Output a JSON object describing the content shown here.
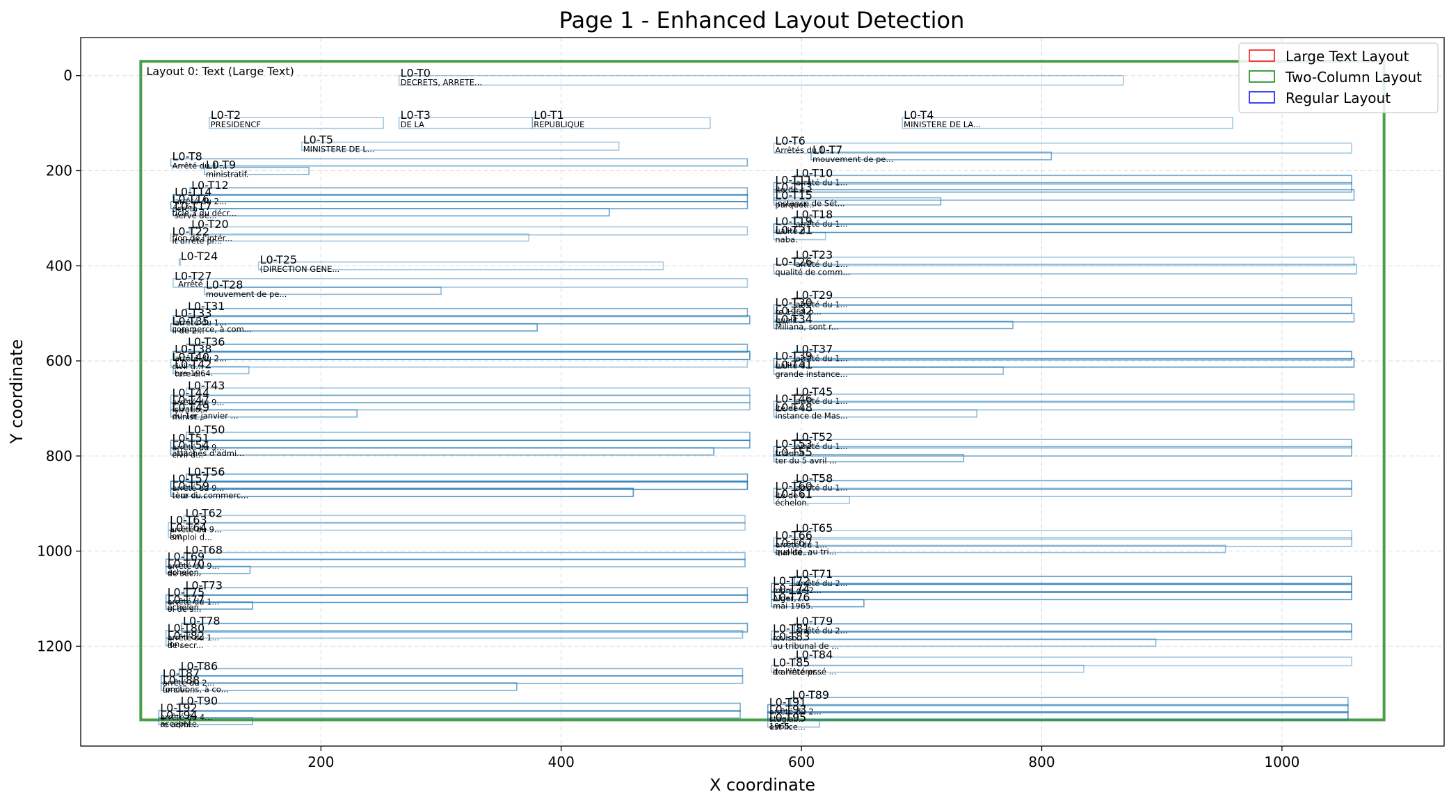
{
  "chart_data": {
    "type": "scatter",
    "title": "Page 1 - Enhanced Layout Detection",
    "xlabel": "X coordinate",
    "ylabel": "Y coordinate",
    "xlim": [
      0,
      1135
    ],
    "ylim": [
      1410,
      -80
    ],
    "y_inverted": true,
    "grid": true,
    "legend_position": "top-right",
    "xticks": [
      200,
      400,
      600,
      800,
      1000
    ],
    "yticks": [
      0,
      200,
      400,
      600,
      800,
      1000,
      1200
    ],
    "legend": [
      {
        "label": "Large Text Layout",
        "color": "#ff0000"
      },
      {
        "label": "Two-Column Layout",
        "color": "#008000"
      },
      {
        "label": "Regular Layout",
        "color": "#0000ff"
      }
    ],
    "layouts": [
      {
        "label": "Layout 0: Text (Large Text)",
        "x0": 50,
        "y0": -30,
        "x1": 1085,
        "y1": 1355,
        "color": "#4a9e4a"
      }
    ],
    "boxes": [
      {
        "label": "L0-T0",
        "text": "DECRETS, ARRETE...",
        "x0": 265,
        "y0": 0,
        "x1": 868,
        "y1": 20,
        "a": 0.4
      },
      {
        "label": "L0-T1",
        "text": "REPUBLIQUE",
        "x0": 376,
        "y0": 88,
        "x1": 524,
        "y1": 111,
        "a": 0.4
      },
      {
        "label": "L0-T2",
        "text": "PRESIDENCF",
        "x0": 107,
        "y0": 88,
        "x1": 252,
        "y1": 111,
        "a": 0.4
      },
      {
        "label": "L0-T3",
        "text": "DE LA",
        "x0": 265,
        "y0": 88,
        "x1": 376,
        "y1": 111,
        "a": 0.4
      },
      {
        "label": "L0-T4",
        "text": "MINISTERE DE LA...",
        "x0": 684,
        "y0": 88,
        "x1": 959,
        "y1": 111,
        "a": 0.4
      },
      {
        "label": "L0-T5",
        "text": "MINISTERE DE L...",
        "x0": 184,
        "y0": 140,
        "x1": 448,
        "y1": 157,
        "a": 0.4
      },
      {
        "label": "L0-T6",
        "text": "Arrêtés du 1 ...",
        "x0": 577,
        "y0": 142,
        "x1": 1058,
        "y1": 163,
        "a": 0.4
      },
      {
        "label": "L0-T7",
        "text": "mouvement de pe...",
        "x0": 608,
        "y0": 161,
        "x1": 808,
        "y1": 177,
        "a": 0.6
      },
      {
        "label": "L0-T8",
        "text": "Arrêté du 1 ...",
        "x0": 75,
        "y0": 175,
        "x1": 555,
        "y1": 190,
        "a": 0.6
      },
      {
        "label": "L0-T9",
        "text": "ministratif.",
        "x0": 103,
        "y0": 193,
        "x1": 190,
        "y1": 208,
        "a": 0.6
      },
      {
        "label": "L0-T10",
        "text": "arrêté du 1...",
        "x0": 594,
        "y0": 210,
        "x1": 1058,
        "y1": 228,
        "a": 0.6
      },
      {
        "label": "L0-T11",
        "text": "ite de c...",
        "x0": 577,
        "y0": 225,
        "x1": 1058,
        "y1": 245,
        "a": 0.6
      },
      {
        "label": "L0-T12",
        "text": "",
        "x0": 91,
        "y0": 236,
        "x1": 555,
        "y1": 252,
        "a": 0.6
      },
      {
        "label": "L0-T13",
        "text": "",
        "x0": 577,
        "y0": 240,
        "x1": 1060,
        "y1": 262,
        "a": 0.6
      },
      {
        "label": "L0-T14",
        "text": "arrêté du 2...",
        "x0": 77,
        "y0": 250,
        "x1": 555,
        "y1": 265,
        "a": 0.7
      },
      {
        "label": "L0-T15",
        "text": "parquet...",
        "x0": 577,
        "y0": 257,
        "x1": 716,
        "y1": 272,
        "a": 0.6
      },
      {
        "label": "L0-T16",
        "text": "écréta",
        "x0": 75,
        "y0": 265,
        "x1": 555,
        "y1": 280,
        "a": 0.7
      },
      {
        "label": "L0-T17",
        "text": "serve de...",
        "x0": 77,
        "y0": 280,
        "x1": 440,
        "y1": 295,
        "a": 0.7
      },
      {
        "label": "L0-T18",
        "text": "arrêté du 1...",
        "x0": 594,
        "y0": 297,
        "x1": 1058,
        "y1": 313,
        "a": 0.7
      },
      {
        "label": "L0-T19",
        "text": "ualité d...",
        "x0": 577,
        "y0": 312,
        "x1": 1058,
        "y1": 330,
        "a": 0.8
      },
      {
        "label": "L0-T20",
        "text": "",
        "x0": 91,
        "y0": 318,
        "x1": 555,
        "y1": 335,
        "a": 0.4
      },
      {
        "label": "L0-T21",
        "text": "naba.",
        "x0": 577,
        "y0": 330,
        "x1": 620,
        "y1": 345,
        "a": 0.4
      },
      {
        "label": "L0-T22",
        "text": "it arrêté pr...",
        "x0": 75,
        "y0": 333,
        "x1": 373,
        "y1": 348,
        "a": 0.4
      },
      {
        "label": "L0-T23",
        "text": "arrêté du 1...",
        "x0": 594,
        "y0": 382,
        "x1": 1060,
        "y1": 400,
        "a": 0.4
      },
      {
        "label": "L0-T24",
        "text": "",
        "x0": 82,
        "y0": 385,
        "x1": 82,
        "y1": 398,
        "a": 0.4
      },
      {
        "label": "L0-T25",
        "text": "(DIRECTION GENE...",
        "x0": 148,
        "y0": 392,
        "x1": 485,
        "y1": 408,
        "a": 0.4
      },
      {
        "label": "L0-T26",
        "text": "",
        "x0": 577,
        "y0": 397,
        "x1": 1062,
        "y1": 417,
        "a": 0.5
      },
      {
        "label": "L0-T27",
        "text": "",
        "x0": 77,
        "y0": 427,
        "x1": 555,
        "y1": 445,
        "a": 0.4
      },
      {
        "label": "L0-T28",
        "text": "mouvement de pe...",
        "x0": 103,
        "y0": 445,
        "x1": 300,
        "y1": 460,
        "a": 0.5
      },
      {
        "label": "L0-T29",
        "text": "arrêté du 1...",
        "x0": 594,
        "y0": 467,
        "x1": 1058,
        "y1": 483,
        "a": 0.6
      },
      {
        "label": "L0-T30",
        "text": "re 1964 p...",
        "x0": 577,
        "y0": 482,
        "x1": 1058,
        "y1": 500,
        "a": 0.6
      },
      {
        "label": "L0-T31",
        "text": "",
        "x0": 88,
        "y0": 490,
        "x1": 555,
        "y1": 507,
        "a": 0.6
      },
      {
        "label": "L0-T32",
        "text": "qualit...",
        "x0": 577,
        "y0": 500,
        "x1": 1060,
        "y1": 518,
        "a": 0.6
      },
      {
        "label": "L0-T33",
        "text": "arrêté du 1...",
        "x0": 77,
        "y0": 505,
        "x1": 557,
        "y1": 522,
        "a": 0.7
      },
      {
        "label": "L0-T34",
        "text": "",
        "x0": 577,
        "y0": 517,
        "x1": 776,
        "y1": 532,
        "a": 0.6
      },
      {
        "label": "L0-T35",
        "text": "il de 2...",
        "x0": 75,
        "y0": 522,
        "x1": 380,
        "y1": 537,
        "a": 0.7
      },
      {
        "label": "L0-T36",
        "text": "",
        "x0": 88,
        "y0": 565,
        "x1": 555,
        "y1": 582,
        "a": 0.6
      },
      {
        "label": "L0-T37",
        "text": "arrêté du 1...",
        "x0": 594,
        "y0": 580,
        "x1": 1058,
        "y1": 598,
        "a": 0.7
      },
      {
        "label": "L0-T38",
        "text": "arrêté du 2...",
        "x0": 77,
        "y0": 580,
        "x1": 557,
        "y1": 597,
        "a": 0.8
      },
      {
        "label": "L0-T39",
        "text": "ualité d...",
        "x0": 577,
        "y0": 595,
        "x1": 1060,
        "y1": 613,
        "a": 0.7
      },
      {
        "label": "L0-T40",
        "text": "civil d...",
        "x0": 75,
        "y0": 597,
        "x1": 555,
        "y1": 613,
        "a": 0.4
      },
      {
        "label": "L0-T41",
        "text": "grande instance...",
        "x0": 577,
        "y0": 613,
        "x1": 768,
        "y1": 628,
        "a": 0.5
      },
      {
        "label": "L0-T42",
        "text": "ture e...",
        "x0": 77,
        "y0": 612,
        "x1": 140,
        "y1": 627,
        "a": 0.5
      },
      {
        "label": "L0-T43",
        "text": "",
        "x0": 88,
        "y0": 657,
        "x1": 557,
        "y1": 673,
        "a": 0.4
      },
      {
        "label": "L0-T44",
        "text": "arrêté du 9...",
        "x0": 75,
        "y0": 672,
        "x1": 557,
        "y1": 688,
        "a": 0.5
      },
      {
        "label": "L0-T45",
        "text": "arrêté du 1...",
        "x0": 594,
        "y0": 670,
        "x1": 1060,
        "y1": 687,
        "a": 0.5
      },
      {
        "label": "L0-T46",
        "text": "ité de c...",
        "x0": 577,
        "y0": 685,
        "x1": 1060,
        "y1": 703,
        "a": 0.5
      },
      {
        "label": "L0-T47",
        "text": "istratio...",
        "x0": 75,
        "y0": 688,
        "x1": 557,
        "y1": 703,
        "a": 0.5
      },
      {
        "label": "L0-T48",
        "text": "",
        "x0": 577,
        "y0": 703,
        "x1": 746,
        "y1": 718,
        "a": 0.5
      },
      {
        "label": "L0-T49",
        "text": "minist...",
        "x0": 75,
        "y0": 703,
        "x1": 230,
        "y1": 718,
        "a": 0.6
      },
      {
        "label": "L0-T50",
        "text": "",
        "x0": 88,
        "y0": 750,
        "x1": 557,
        "y1": 767,
        "a": 0.6
      },
      {
        "label": "L0-T51",
        "text": "arrêté du 9...",
        "x0": 75,
        "y0": 767,
        "x1": 557,
        "y1": 783,
        "a": 0.7
      },
      {
        "label": "L0-T52",
        "text": "arrêté du 1...",
        "x0": 594,
        "y0": 765,
        "x1": 1058,
        "y1": 783,
        "a": 0.6
      },
      {
        "label": "L0-T53",
        "text": "tribuna...",
        "x0": 577,
        "y0": 780,
        "x1": 1058,
        "y1": 800,
        "a": 0.6
      },
      {
        "label": "L0-T54",
        "text": "civil d...",
        "x0": 75,
        "y0": 783,
        "x1": 527,
        "y1": 798,
        "a": 0.7
      },
      {
        "label": "L0-T55",
        "text": "",
        "x0": 577,
        "y0": 797,
        "x1": 735,
        "y1": 812,
        "a": 0.6
      },
      {
        "label": "L0-T56",
        "text": "",
        "x0": 88,
        "y0": 838,
        "x1": 555,
        "y1": 855,
        "a": 0.7
      },
      {
        "label": "L0-T57",
        "text": "arrêté du 9...",
        "x0": 75,
        "y0": 853,
        "x1": 555,
        "y1": 870,
        "a": 0.9
      },
      {
        "label": "L0-T58",
        "text": "arrêté du 1...",
        "x0": 594,
        "y0": 852,
        "x1": 1058,
        "y1": 870,
        "a": 0.7
      },
      {
        "label": "L0-T59",
        "text": "teur ci...",
        "x0": 75,
        "y0": 868,
        "x1": 460,
        "y1": 885,
        "a": 0.8
      },
      {
        "label": "L0-T60",
        "text": "ité de s...",
        "x0": 577,
        "y0": 868,
        "x1": 1058,
        "y1": 885,
        "a": 0.5
      },
      {
        "label": "L0-T61",
        "text": "",
        "x0": 577,
        "y0": 885,
        "x1": 640,
        "y1": 900,
        "a": 0.4
      },
      {
        "label": "L0-T62",
        "text": "",
        "x0": 86,
        "y0": 925,
        "x1": 553,
        "y1": 941,
        "a": 0.4
      },
      {
        "label": "L0-T63",
        "text": "arrêté du 9...",
        "x0": 73,
        "y0": 940,
        "x1": 553,
        "y1": 956,
        "a": 0.4
      },
      {
        "label": "L0-T64",
        "text": "emploi d...",
        "x0": 73,
        "y0": 956,
        "x1": 75,
        "y1": 971,
        "a": 0.4
      },
      {
        "label": "L0-T65",
        "text": "",
        "x0": 594,
        "y0": 957,
        "x1": 1058,
        "y1": 975,
        "a": 0.4
      },
      {
        "label": "L0-T66",
        "text": "arrêté du 1...",
        "x0": 577,
        "y0": 972,
        "x1": 1058,
        "y1": 990,
        "a": 0.5
      },
      {
        "label": "L0-T67",
        "text": "inal de ...",
        "x0": 577,
        "y0": 988,
        "x1": 953,
        "y1": 1003,
        "a": 0.5
      },
      {
        "label": "L0-T68",
        "text": "",
        "x0": 86,
        "y0": 1003,
        "x1": 553,
        "y1": 1018,
        "a": 0.5
      },
      {
        "label": "L0-T69",
        "text": "arrêté du 9...",
        "x0": 71,
        "y0": 1017,
        "x1": 553,
        "y1": 1033,
        "a": 0.6
      },
      {
        "label": "L0-T70",
        "text": "de sec...",
        "x0": 71,
        "y0": 1032,
        "x1": 141,
        "y1": 1047,
        "a": 0.6
      },
      {
        "label": "L0-T71",
        "text": "arrêté du 2...",
        "x0": 594,
        "y0": 1053,
        "x1": 1058,
        "y1": 1070,
        "a": 0.8
      },
      {
        "label": "L0-T72",
        "text": "mbre de 2...",
        "x0": 575,
        "y0": 1068,
        "x1": 1058,
        "y1": 1087,
        "a": 0.8
      },
      {
        "label": "L0-T73",
        "text": "",
        "x0": 86,
        "y0": 1077,
        "x1": 555,
        "y1": 1093,
        "a": 0.6
      },
      {
        "label": "L0-T74",
        "text": "Alger, ...",
        "x0": 575,
        "y0": 1085,
        "x1": 1058,
        "y1": 1102,
        "a": 0.7
      },
      {
        "label": "L0-T75",
        "text": "arrêté du 1...",
        "x0": 71,
        "y0": 1092,
        "x1": 555,
        "y1": 1108,
        "a": 0.7
      },
      {
        "label": "L0-T76",
        "text": "",
        "x0": 575,
        "y0": 1102,
        "x1": 652,
        "y1": 1117,
        "a": 0.7
      },
      {
        "label": "L0-T77",
        "text": "oi de s...",
        "x0": 71,
        "y0": 1107,
        "x1": 143,
        "y1": 1122,
        "a": 0.7
      },
      {
        "label": "L0-T78",
        "text": "",
        "x0": 84,
        "y0": 1152,
        "x1": 555,
        "y1": 1170,
        "a": 0.7
      },
      {
        "label": "L0-T79",
        "text": "arrêté du 2...",
        "x0": 594,
        "y0": 1153,
        "x1": 1058,
        "y1": 1170,
        "a": 0.8
      },
      {
        "label": "L0-T80",
        "text": "arrêté du 1...",
        "x0": 71,
        "y0": 1167,
        "x1": 551,
        "y1": 1183,
        "a": 0.5
      },
      {
        "label": "L0-T81",
        "text": "roviso...",
        "x0": 575,
        "y0": 1168,
        "x1": 1058,
        "y1": 1186,
        "a": 0.5
      },
      {
        "label": "L0-T82",
        "text": "de secr...",
        "x0": 71,
        "y0": 1183,
        "x1": 75,
        "y1": 1198,
        "a": 0.5
      },
      {
        "label": "L0-T83",
        "text": "au tribunal de ...",
        "x0": 575,
        "y0": 1185,
        "x1": 895,
        "y1": 1200,
        "a": 0.5
      },
      {
        "label": "L0-T84",
        "text": "",
        "x0": 594,
        "y0": 1223,
        "x1": 1058,
        "y1": 1241,
        "a": 0.4
      },
      {
        "label": "L0-T85",
        "text": "it arrêté pr...",
        "x0": 575,
        "y0": 1240,
        "x1": 835,
        "y1": 1255,
        "a": 0.4
      },
      {
        "label": "L0-T86",
        "text": "",
        "x0": 82,
        "y0": 1247,
        "x1": 551,
        "y1": 1263,
        "a": 0.5
      },
      {
        "label": "L0-T87",
        "text": "arrêté du 2...",
        "x0": 67,
        "y0": 1262,
        "x1": 551,
        "y1": 1278,
        "a": 0.6
      },
      {
        "label": "L0-T88",
        "text": "ur civi...",
        "x0": 67,
        "y0": 1277,
        "x1": 363,
        "y1": 1293,
        "a": 0.6
      },
      {
        "label": "L0-T89",
        "text": "",
        "x0": 591,
        "y0": 1308,
        "x1": 1055,
        "y1": 1325,
        "a": 0.6
      },
      {
        "label": "L0-T90",
        "text": "",
        "x0": 82,
        "y0": 1320,
        "x1": 549,
        "y1": 1337,
        "a": 0.6
      },
      {
        "label": "L0-T91",
        "text": "arrêté du 2...",
        "x0": 572,
        "y0": 1323,
        "x1": 1055,
        "y1": 1340,
        "a": 0.7
      },
      {
        "label": "L0-T92",
        "text": "arrêté du 4...",
        "x0": 65,
        "y0": 1335,
        "x1": 549,
        "y1": 1351,
        "a": 0.6
      },
      {
        "label": "L0-T93",
        "text": "stagiai...",
        "x0": 572,
        "y0": 1338,
        "x1": 1055,
        "y1": 1355,
        "a": 0.8
      },
      {
        "label": "L0-T94",
        "text": "re admi...",
        "x0": 65,
        "y0": 1350,
        "x1": 143,
        "y1": 1365,
        "a": 0.6
      },
      {
        "label": "L0-T95",
        "text": "est lice...",
        "x0": 572,
        "y0": 1355,
        "x1": 615,
        "y1": 1370,
        "a": 0.5
      }
    ],
    "fragments": [
      {
        "text": "ticle 3 du décr...",
        "x": 75,
        "y": 291
      },
      {
        "text": "tion de l'intér...",
        "x": 75,
        "y": 343
      },
      {
        "text": "Arrêté",
        "x": 80,
        "y": 440
      },
      {
        "text": "qualité de comm...",
        "x": 577,
        "y": 415
      },
      {
        "text": "Miliana, sont r...",
        "x": 577,
        "y": 530
      },
      {
        "text": "commerce, à com...",
        "x": 75,
        "y": 535
      },
      {
        "text": "bre 1964.",
        "x": 77,
        "y": 628
      },
      {
        "text": "instance de Sét...",
        "x": 577,
        "y": 270
      },
      {
        "text": "du 1er janvier ...",
        "x": 75,
        "y": 717
      },
      {
        "text": "instance de Mas...",
        "x": 577,
        "y": 717
      },
      {
        "text": "attachés d'admi...",
        "x": 75,
        "y": 796
      },
      {
        "text": "ter du 5 avril ...",
        "x": 577,
        "y": 811
      },
      {
        "text": "tère du commerc...",
        "x": 75,
        "y": 884
      },
      {
        "text": "échelon.",
        "x": 577,
        "y": 900
      },
      {
        "text": "lon.",
        "x": 73,
        "y": 970
      },
      {
        "text": "qualité, au tri...",
        "x": 577,
        "y": 1003
      },
      {
        "text": "échelon.",
        "x": 71,
        "y": 1046
      },
      {
        "text": "mai 1965.",
        "x": 575,
        "y": 1117
      },
      {
        "text": "échelon.",
        "x": 71,
        "y": 1120
      },
      {
        "text": "lon.",
        "x": 71,
        "y": 1197
      },
      {
        "text": "de l'intéressé ...",
        "x": 575,
        "y": 1255
      },
      {
        "text": "fonctions, à co...",
        "x": 67,
        "y": 1292
      },
      {
        "text": "acceptée.",
        "x": 65,
        "y": 1365
      },
      {
        "text": "1965.",
        "x": 572,
        "y": 1370
      }
    ]
  }
}
